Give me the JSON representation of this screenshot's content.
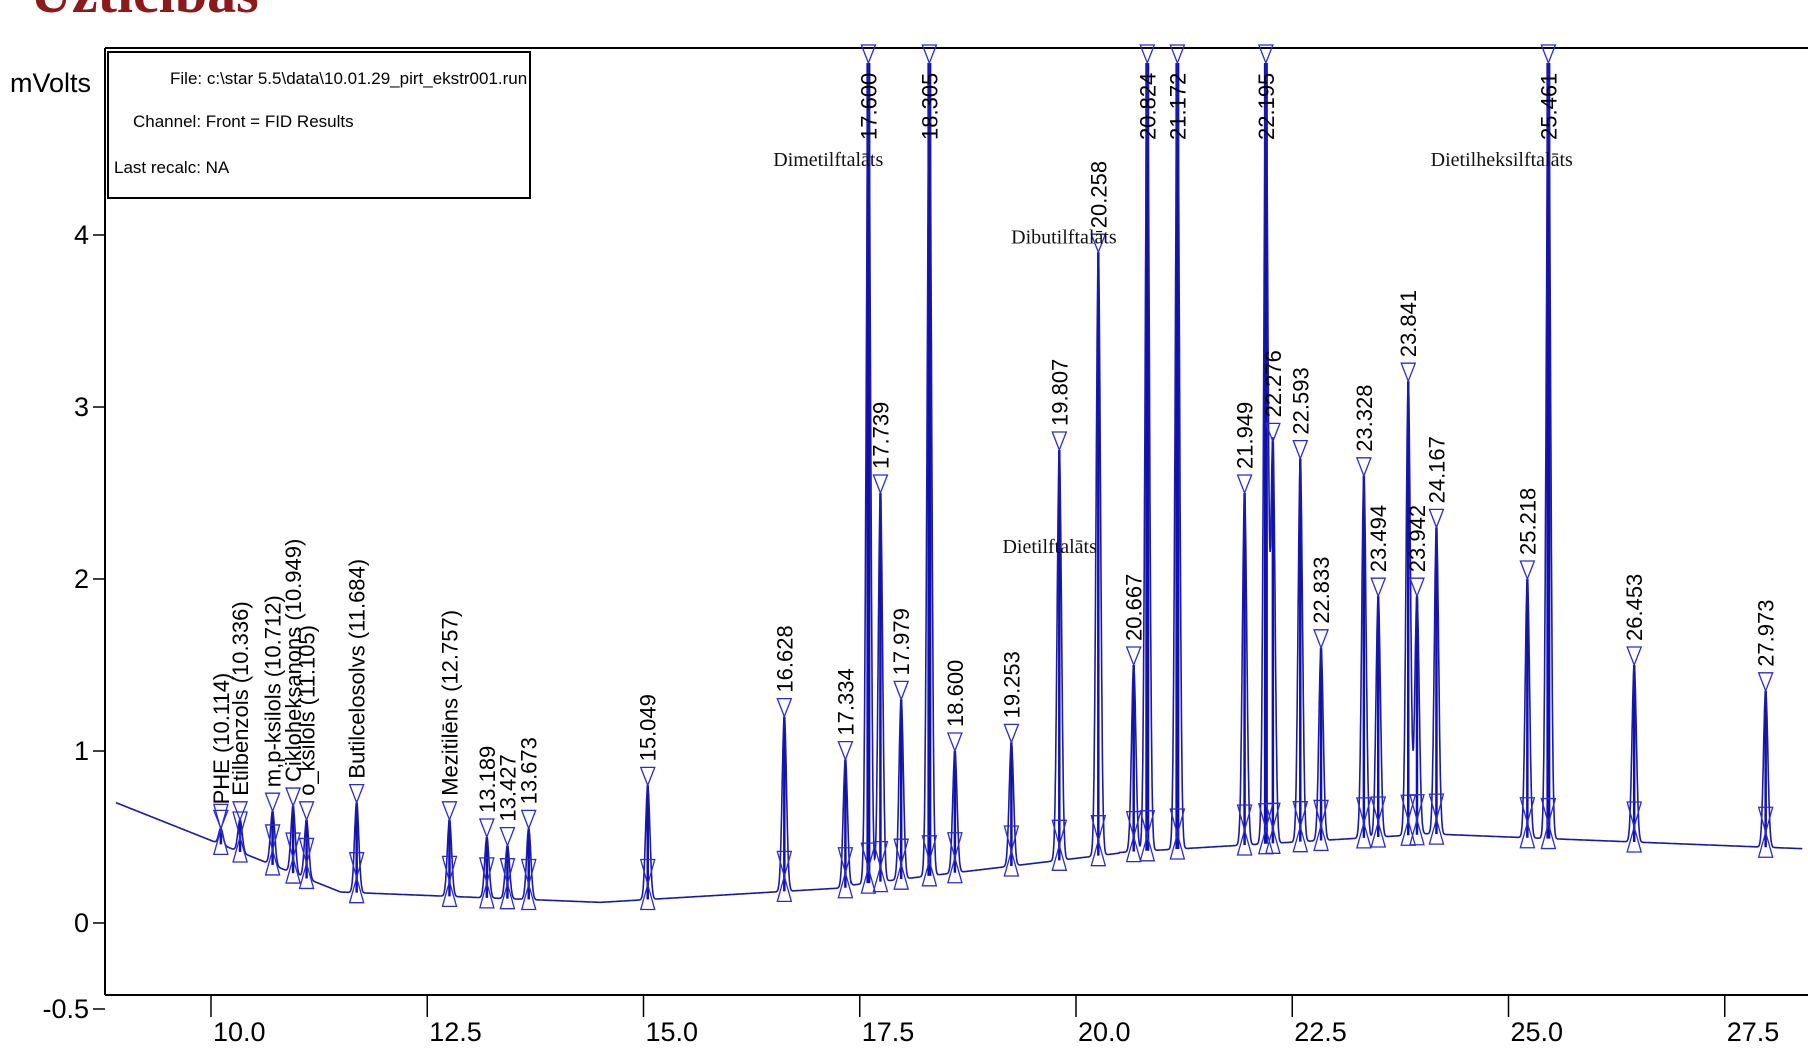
{
  "logo": {
    "text": "Uzticības"
  },
  "info_box": {
    "file": "File: c:\\star 5.5\\data\\10.01.29_pirt_ekstr001.run",
    "channel": "Channel: Front = FID  Results",
    "last_recalc": "Last recalc: NA"
  },
  "colors": {
    "trace": "#1a1aa8",
    "markers": "#2a2ad8",
    "axis": "#000000",
    "logo": "#8b1a1a"
  },
  "chart_data": {
    "type": "line",
    "title": "",
    "xlabel": "",
    "ylabel": "mVolts",
    "xlim": [
      8.9,
      28.4
    ],
    "ylim": [
      -0.75,
      5.0
    ],
    "x_ticks": [
      10.0,
      12.5,
      15.0,
      17.5,
      20.0,
      22.5,
      25.0,
      27.5
    ],
    "x_tick_labels": [
      "10.0",
      "12.5",
      "15.0",
      "17.5",
      "20.0",
      "22.5",
      "25.0",
      "27.5"
    ],
    "y_ticks": [
      -0.5,
      0,
      1,
      2,
      3,
      4
    ],
    "y_tick_labels": [
      "-0.5",
      "0",
      "1",
      "2",
      "3",
      "4"
    ],
    "grid": false,
    "peaks": [
      {
        "rt": 10.114,
        "height": 0.55,
        "label": "PHE (10.114)"
      },
      {
        "rt": 10.336,
        "height": 0.6,
        "label": "Etilbenzols (10.336)"
      },
      {
        "rt": 10.712,
        "height": 0.65,
        "label": "m,p-ksilols (10.712)"
      },
      {
        "rt": 10.949,
        "height": 0.68,
        "label": "Cikloheksanons (10.949)"
      },
      {
        "rt": 11.105,
        "height": 0.6,
        "label": "o_ksilols (11.105)"
      },
      {
        "rt": 11.684,
        "height": 0.7,
        "label": "Butilcelosolvs (11.684)"
      },
      {
        "rt": 12.757,
        "height": 0.6,
        "label": "Mezitilēns (12.757)"
      },
      {
        "rt": 13.189,
        "height": 0.5,
        "label": "13.189"
      },
      {
        "rt": 13.427,
        "height": 0.45,
        "label": "13.427"
      },
      {
        "rt": 13.673,
        "height": 0.55,
        "label": "13.673"
      },
      {
        "rt": 15.049,
        "height": 0.8,
        "label": "15.049"
      },
      {
        "rt": 16.628,
        "height": 1.2,
        "label": "16.628"
      },
      {
        "rt": 17.334,
        "height": 0.95,
        "label": "17.334"
      },
      {
        "rt": 17.6,
        "height": 5.0,
        "label": "17.600"
      },
      {
        "rt": 17.739,
        "height": 2.5,
        "label": "17.739"
      },
      {
        "rt": 17.979,
        "height": 1.3,
        "label": "17.979"
      },
      {
        "rt": 18.305,
        "height": 5.0,
        "label": "18.305"
      },
      {
        "rt": 18.6,
        "height": 1.0,
        "label": "18.600"
      },
      {
        "rt": 19.253,
        "height": 1.05,
        "label": "19.253"
      },
      {
        "rt": 19.807,
        "height": 2.75,
        "label": "19.807"
      },
      {
        "rt": 20.258,
        "height": 3.9,
        "label": "20.258"
      },
      {
        "rt": 20.667,
        "height": 1.5,
        "label": "20.667"
      },
      {
        "rt": 20.824,
        "height": 5.0,
        "label": "20.824"
      },
      {
        "rt": 21.172,
        "height": 5.0,
        "label": "21.172"
      },
      {
        "rt": 21.949,
        "height": 2.5,
        "label": "21.949"
      },
      {
        "rt": 22.195,
        "height": 5.0,
        "label": "22.195"
      },
      {
        "rt": 22.276,
        "height": 2.8,
        "label": "22.276"
      },
      {
        "rt": 22.593,
        "height": 2.7,
        "label": "22.593"
      },
      {
        "rt": 22.833,
        "height": 1.6,
        "label": "22.833"
      },
      {
        "rt": 23.328,
        "height": 2.6,
        "label": "23.328"
      },
      {
        "rt": 23.494,
        "height": 1.9,
        "label": "23.494"
      },
      {
        "rt": 23.841,
        "height": 3.15,
        "label": "23.841"
      },
      {
        "rt": 23.942,
        "height": 1.9,
        "label": "23.942"
      },
      {
        "rt": 24.167,
        "height": 2.3,
        "label": "24.167"
      },
      {
        "rt": 25.218,
        "height": 2.0,
        "label": "25.218"
      },
      {
        "rt": 25.461,
        "height": 5.0,
        "label": "25.461"
      },
      {
        "rt": 26.453,
        "height": 1.5,
        "label": "26.453"
      },
      {
        "rt": 27.973,
        "height": 1.35,
        "label": "27.973"
      }
    ],
    "annotations": [
      {
        "text": "Dimetilftalāts",
        "x": 16.5,
        "y": 4.4
      },
      {
        "text": "Dibutilftalāts",
        "x": 19.25,
        "y": 3.95
      },
      {
        "text": "Dietilftalāts",
        "x": 19.15,
        "y": 2.15
      },
      {
        "text": "Dietilheksilftalāts",
        "x": 24.1,
        "y": 4.4
      }
    ]
  }
}
